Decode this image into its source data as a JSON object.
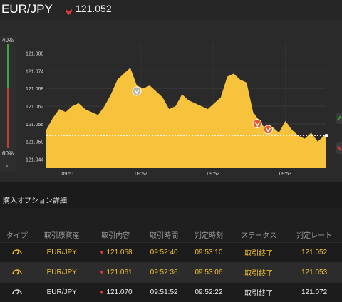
{
  "header": {
    "pair": "EUR/JPY",
    "price": "121.052",
    "trend_icon": "down-arrow-icon"
  },
  "gauge": {
    "top_label": "40%",
    "bottom_label": "60%",
    "close_label": "×",
    "up_share": 0.4,
    "down_share": 0.6
  },
  "chart_data": {
    "type": "area",
    "y_ticks": [
      "121.080",
      "121.074",
      "121.068",
      "121.062",
      "121.056",
      "121.050",
      "121.044"
    ],
    "x_ticks": [
      "09:51",
      "09:52",
      "09:52",
      "09:53"
    ],
    "ylim": [
      121.041,
      121.083
    ],
    "xlim": [
      0,
      260
    ],
    "series_color": "#f7c33d",
    "current_price": 121.052,
    "x": [
      0,
      6,
      12,
      18,
      24,
      30,
      36,
      42,
      48,
      54,
      60,
      66,
      72,
      78,
      84,
      90,
      96,
      102,
      108,
      114,
      120,
      126,
      132,
      138,
      144,
      150,
      156,
      162,
      168,
      174,
      180,
      186,
      192,
      198,
      204,
      210,
      216,
      222,
      228,
      234,
      240,
      246,
      252,
      258,
      260
    ],
    "y": [
      121.054,
      121.058,
      121.061,
      121.06,
      121.062,
      121.063,
      121.061,
      121.06,
      121.059,
      121.062,
      121.066,
      121.071,
      121.073,
      121.075,
      121.069,
      121.068,
      121.069,
      121.067,
      121.065,
      121.061,
      121.062,
      121.066,
      121.064,
      121.063,
      121.062,
      121.061,
      121.063,
      121.065,
      121.072,
      121.073,
      121.071,
      121.07,
      121.06,
      121.057,
      121.054,
      121.055,
      121.053,
      121.057,
      121.054,
      121.052,
      121.051,
      121.053,
      121.05,
      121.052,
      121.052
    ],
    "markers": [
      {
        "x": 84,
        "y": 121.069,
        "type": "gray"
      },
      {
        "x": 196,
        "y": 121.058,
        "type": "red"
      },
      {
        "x": 206,
        "y": 121.056,
        "type": "red"
      }
    ]
  },
  "section_title": "購入オプション詳細",
  "table": {
    "headers": [
      "タイプ",
      "取引原資産",
      "取引内容",
      "取引時間",
      "判定時刻",
      "ステータス",
      "判定レート"
    ],
    "rows": [
      {
        "type_icon": "gauge-icon",
        "asset": "EUR/JPY",
        "content": "121.058",
        "time": "09:52:40",
        "judge_time": "09:53:10",
        "status": "取引終了",
        "rate": "121.052",
        "highlight": true
      },
      {
        "type_icon": "gauge-icon",
        "asset": "EUR/JPY",
        "content": "121.061",
        "time": "09:52:36",
        "judge_time": "09:53:06",
        "status": "取引終了",
        "rate": "121.053",
        "highlight": true
      },
      {
        "type_icon": "gauge-icon",
        "asset": "EUR/JPY",
        "content": "121.070",
        "time": "09:51:52",
        "judge_time": "09:52:22",
        "status": "取引終了",
        "rate": "121.072",
        "highlight": false
      }
    ]
  }
}
